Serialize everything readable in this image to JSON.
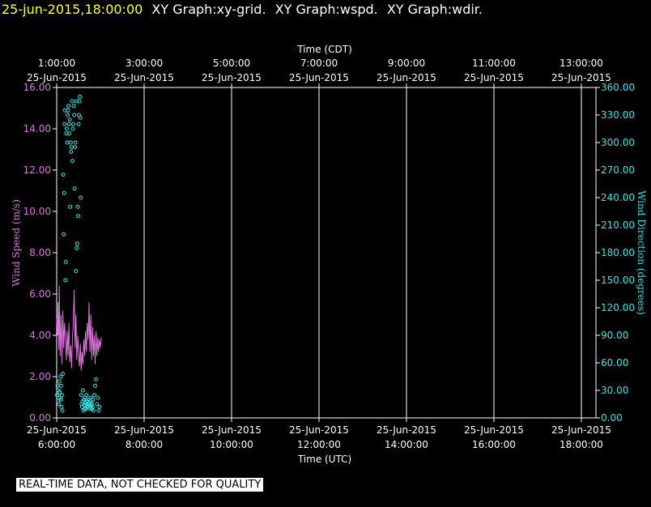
{
  "header": {
    "timestamp": "25-jun-2015,18:00:00",
    "graphs": [
      "XY Graph:xy-grid.",
      "XY Graph:wspd.",
      "XY Graph:wdir."
    ]
  },
  "notice": "REAL-TIME DATA, NOT CHECKED FOR QUALITY",
  "colors": {
    "speed": "#dd77dd",
    "direction": "#33e6e6",
    "axis": "#ffffff",
    "title": "#ffff33"
  },
  "chart_data": {
    "type": "scatter",
    "x_top": {
      "label": "Time (CDT)",
      "ticks": [
        {
          "time": "1:00:00",
          "date": "25-Jun-2015"
        },
        {
          "time": "3:00:00",
          "date": "25-Jun-2015"
        },
        {
          "time": "5:00:00",
          "date": "25-Jun-2015"
        },
        {
          "time": "7:00:00",
          "date": "25-Jun-2015"
        },
        {
          "time": "9:00:00",
          "date": "25-Jun-2015"
        },
        {
          "time": "11:00:00",
          "date": "25-Jun-2015"
        },
        {
          "time": "13:00:00",
          "date": "25-Jun-2015"
        }
      ]
    },
    "x_bottom": {
      "label": "Time (UTC)",
      "ticks": [
        {
          "date": "25-Jun-2015",
          "time": "6:00:00"
        },
        {
          "date": "25-Jun-2015",
          "time": "8:00:00"
        },
        {
          "date": "25-Jun-2015",
          "time": "10:00:00"
        },
        {
          "date": "25-Jun-2015",
          "time": "12:00:00"
        },
        {
          "date": "25-Jun-2015",
          "time": "14:00:00"
        },
        {
          "date": "25-Jun-2015",
          "time": "16:00:00"
        },
        {
          "date": "25-Jun-2015",
          "time": "18:00:00"
        }
      ]
    },
    "x_range_hours_utc": [
      6,
      18
    ],
    "y_left": {
      "label": "Wind Speed (m/s)",
      "range": [
        0,
        16
      ],
      "ticks": [
        "0.00",
        "2.00",
        "4.00",
        "6.00",
        "8.00",
        "10.00",
        "12.00",
        "14.00",
        "16.00"
      ]
    },
    "y_right": {
      "label": "Wind Direction (degrees)",
      "range": [
        0,
        360
      ],
      "ticks": [
        "0.00",
        "30.00",
        "60.00",
        "90.00",
        "120.00",
        "150.00",
        "180.00",
        "210.00",
        "240.00",
        "270.00",
        "300.00",
        "330.00",
        "360.00"
      ]
    },
    "grid": "vertical",
    "series": [
      {
        "kind": "line",
        "units": "m/s",
        "points": [
          [
            6.0,
            4.8
          ],
          [
            6.02,
            4.0
          ],
          [
            6.03,
            5.6
          ],
          [
            6.05,
            3.3
          ],
          [
            6.06,
            6.4
          ],
          [
            6.08,
            3.0
          ],
          [
            6.1,
            5.0
          ],
          [
            6.12,
            2.6
          ],
          [
            6.14,
            5.2
          ],
          [
            6.16,
            3.4
          ],
          [
            6.18,
            4.6
          ],
          [
            6.2,
            3.8
          ],
          [
            6.22,
            2.8
          ],
          [
            6.24,
            4.2
          ],
          [
            6.26,
            3.0
          ],
          [
            6.28,
            4.6
          ],
          [
            6.3,
            2.7
          ],
          [
            6.32,
            3.5
          ],
          [
            6.34,
            2.4
          ],
          [
            6.36,
            3.8
          ],
          [
            6.38,
            4.6
          ],
          [
            6.4,
            6.2
          ],
          [
            6.42,
            3.4
          ],
          [
            6.44,
            5.0
          ],
          [
            6.46,
            2.8
          ],
          [
            6.48,
            4.0
          ],
          [
            6.5,
            3.0
          ],
          [
            6.52,
            2.5
          ],
          [
            6.54,
            3.6
          ],
          [
            6.56,
            2.3
          ],
          [
            6.58,
            3.2
          ],
          [
            6.6,
            2.6
          ],
          [
            6.62,
            3.8
          ],
          [
            6.64,
            3.0
          ],
          [
            6.66,
            4.2
          ],
          [
            6.68,
            3.2
          ],
          [
            6.7,
            4.6
          ],
          [
            6.72,
            3.8
          ],
          [
            6.74,
            5.6
          ],
          [
            6.76,
            3.2
          ],
          [
            6.78,
            5.0
          ],
          [
            6.8,
            2.8
          ],
          [
            6.82,
            4.4
          ],
          [
            6.84,
            3.0
          ],
          [
            6.86,
            4.0
          ],
          [
            6.88,
            2.6
          ],
          [
            6.9,
            4.2
          ],
          [
            6.92,
            3.0
          ],
          [
            6.94,
            3.9
          ],
          [
            6.96,
            3.2
          ],
          [
            6.98,
            3.8
          ],
          [
            7.0,
            3.4
          ],
          [
            7.02,
            3.9
          ]
        ]
      },
      {
        "kind": "scatter",
        "units": "degrees",
        "points": [
          [
            6.01,
            25
          ],
          [
            6.02,
            35
          ],
          [
            6.03,
            18
          ],
          [
            6.04,
            30
          ],
          [
            6.05,
            15
          ],
          [
            6.06,
            40
          ],
          [
            6.07,
            28
          ],
          [
            6.08,
            22
          ],
          [
            6.09,
            45
          ],
          [
            6.1,
            20
          ],
          [
            6.1,
            35
          ],
          [
            6.11,
            12
          ],
          [
            6.12,
            25
          ],
          [
            6.13,
            8
          ],
          [
            6.14,
            48
          ],
          [
            6.15,
            265
          ],
          [
            6.16,
            200
          ],
          [
            6.17,
            245
          ],
          [
            6.18,
            320
          ],
          [
            6.19,
            335
          ],
          [
            6.2,
            150
          ],
          [
            6.21,
            170
          ],
          [
            6.22,
            310
          ],
          [
            6.23,
            315
          ],
          [
            6.24,
            300
          ],
          [
            6.25,
            330
          ],
          [
            6.26,
            335
          ],
          [
            6.27,
            340
          ],
          [
            6.28,
            320
          ],
          [
            6.29,
            310
          ],
          [
            6.3,
            325
          ],
          [
            6.31,
            230
          ],
          [
            6.32,
            300
          ],
          [
            6.33,
            290
          ],
          [
            6.34,
            295
          ],
          [
            6.35,
            345
          ],
          [
            6.36,
            280
          ],
          [
            6.37,
            315
          ],
          [
            6.38,
            320
          ],
          [
            6.39,
            340
          ],
          [
            6.4,
            330
          ],
          [
            6.41,
            250
          ],
          [
            6.42,
            295
          ],
          [
            6.43,
            300
          ],
          [
            6.44,
            160
          ],
          [
            6.45,
            345
          ],
          [
            6.46,
            185
          ],
          [
            6.47,
            190
          ],
          [
            6.48,
            230
          ],
          [
            6.49,
            220
          ],
          [
            6.5,
            320
          ],
          [
            6.51,
            330
          ],
          [
            6.52,
            345
          ],
          [
            6.53,
            350
          ],
          [
            6.54,
            327
          ],
          [
            6.55,
            240
          ],
          [
            6.56,
            25
          ],
          [
            6.57,
            15
          ],
          [
            6.58,
            12
          ],
          [
            6.59,
            18
          ],
          [
            6.6,
            30
          ],
          [
            6.61,
            8
          ],
          [
            6.62,
            20
          ],
          [
            6.63,
            14
          ],
          [
            6.64,
            10
          ],
          [
            6.65,
            22
          ],
          [
            6.66,
            16
          ],
          [
            6.67,
            10
          ],
          [
            6.68,
            25
          ],
          [
            6.69,
            14
          ],
          [
            6.7,
            18
          ],
          [
            6.71,
            12
          ],
          [
            6.72,
            16
          ],
          [
            6.73,
            20
          ],
          [
            6.74,
            15
          ],
          [
            6.75,
            10
          ],
          [
            6.76,
            12
          ],
          [
            6.77,
            18
          ],
          [
            6.78,
            22
          ],
          [
            6.79,
            14
          ],
          [
            6.8,
            16
          ],
          [
            6.81,
            10
          ],
          [
            6.82,
            12
          ],
          [
            6.83,
            20
          ],
          [
            6.84,
            8
          ],
          [
            6.86,
            25
          ],
          [
            6.88,
            35
          ],
          [
            6.9,
            42
          ],
          [
            6.92,
            15
          ],
          [
            6.94,
            22
          ],
          [
            6.96,
            8
          ],
          [
            6.98,
            12
          ]
        ]
      }
    ]
  }
}
